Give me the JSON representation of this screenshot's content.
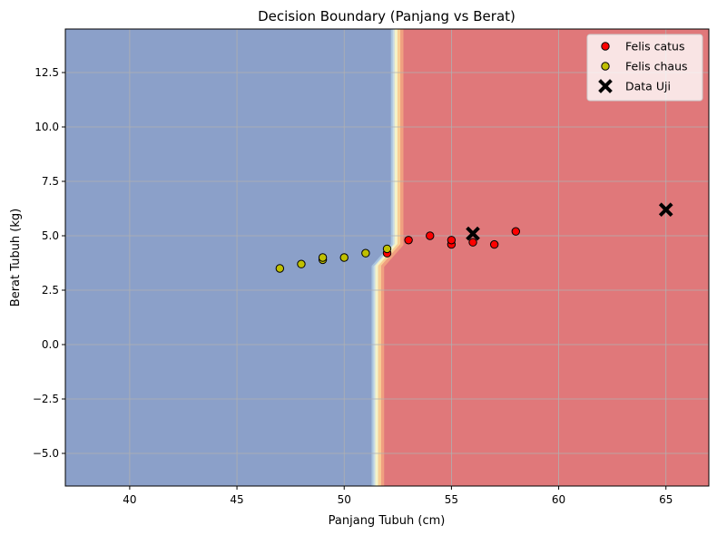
{
  "chart_data": {
    "type": "scatter",
    "title": "Decision Boundary (Panjang vs Berat)",
    "xlabel": "Panjang Tubuh (cm)",
    "ylabel": "Berat Tubuh (kg)",
    "xlim": [
      37,
      67
    ],
    "ylim": [
      -6.5,
      14.5
    ],
    "x_ticks": [
      40,
      45,
      50,
      55,
      60,
      65
    ],
    "x_tick_labels": [
      "40",
      "45",
      "50",
      "55",
      "60",
      "65"
    ],
    "y_ticks": [
      -5.0,
      -2.5,
      0.0,
      2.5,
      5.0,
      7.5,
      10.0,
      12.5
    ],
    "y_tick_labels": [
      "−5.0",
      "−2.5",
      "0.0",
      "2.5",
      "5.0",
      "7.5",
      "10.0",
      "12.5"
    ],
    "grid": true,
    "legend_position": "top-right",
    "background": {
      "type": "decision-regions",
      "boundary": [
        [
          52.2,
          14.5
        ],
        [
          52.2,
          4.6
        ],
        [
          51.3,
          3.6
        ],
        [
          51.3,
          -6.5
        ]
      ],
      "left_region_color": "#8ba0c9",
      "right_region_color": "#e0787a"
    },
    "series": [
      {
        "name": "Felis catus",
        "color": "#ff0000",
        "marker": "circle",
        "points": [
          [
            52,
            4.2
          ],
          [
            53,
            4.8
          ],
          [
            54,
            5.0
          ],
          [
            55,
            4.6
          ],
          [
            55,
            4.8
          ],
          [
            56,
            4.7
          ],
          [
            57,
            4.6
          ],
          [
            58,
            5.2
          ]
        ]
      },
      {
        "name": "Felis chaus",
        "color": "#c0c000",
        "marker": "circle",
        "points": [
          [
            47,
            3.5
          ],
          [
            48,
            3.7
          ],
          [
            49,
            3.9
          ],
          [
            49,
            4.0
          ],
          [
            50,
            4.0
          ],
          [
            51,
            4.2
          ],
          [
            52,
            4.4
          ]
        ]
      },
      {
        "name": "Data Uji",
        "color": "#000000",
        "marker": "x",
        "points": [
          [
            56,
            5.1
          ],
          [
            65,
            6.2
          ]
        ]
      }
    ]
  }
}
